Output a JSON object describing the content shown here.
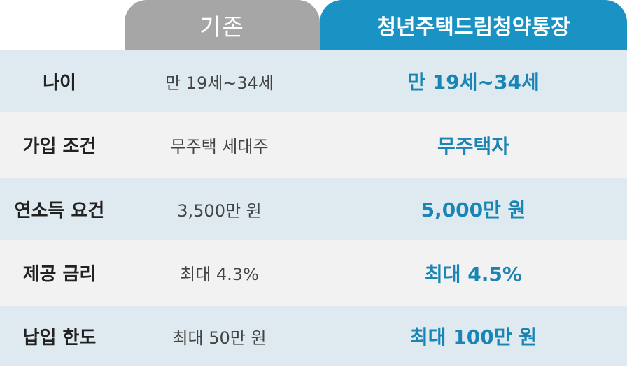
{
  "header": {
    "old_label": "기존",
    "new_label": "청년주택드림청약통장"
  },
  "rows": [
    {
      "label": "나이",
      "old": "만 19세~34세",
      "new": "만 19세~34세"
    },
    {
      "label": "가입 조건",
      "old": "무주택 세대주",
      "new": "무주택자"
    },
    {
      "label": "연소득 요건",
      "old": "3,500만 원",
      "new": "5,000만 원"
    },
    {
      "label": "제공 금리",
      "old": "최대 4.3%",
      "new": "최대 4.5%"
    },
    {
      "label": "납입 한도",
      "old": "최대 50만 원",
      "new": "최대 100만 원"
    }
  ],
  "colors": {
    "old_tab": "#a6a6a6",
    "new_tab": "#1a93c4",
    "new_text": "#1a85b4",
    "row_blue": "#deeaf0",
    "row_gray": "#f2f2f2"
  }
}
